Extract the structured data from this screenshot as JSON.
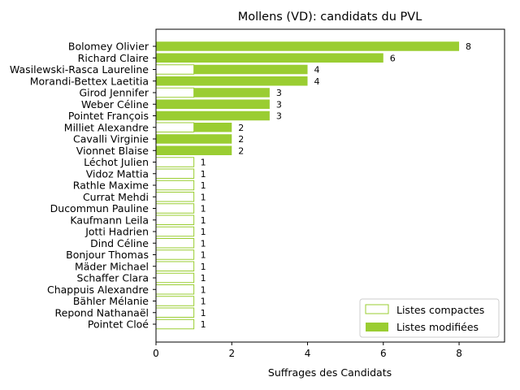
{
  "chart_data": {
    "type": "bar",
    "orientation": "horizontal",
    "title": "Mollens (VD): candidats du PVL",
    "xlabel": "Suffrages des Candidats",
    "ylabel": "",
    "xlim": [
      0,
      9.2
    ],
    "xticks": [
      0,
      2,
      4,
      6,
      8
    ],
    "grid": false,
    "legend_position": "bottom-right",
    "bar_color": "#9ACD32",
    "categories": [
      "Bolomey Olivier",
      "Richard Claire",
      "Wasilewski-Rasca Laureline",
      "Morandi-Bettex Laetitia",
      "Girod Jennifer",
      "Weber Céline",
      "Pointet François",
      "Milliet Alexandre",
      "Cavalli Virginie",
      "Vionnet Blaise",
      "Léchot Julien",
      "Vidoz Mattia",
      "Rathle Maxime",
      "Currat Mehdi",
      "Ducommun Pauline",
      "Kaufmann Leila",
      "Jotti Hadrien",
      "Dind Céline",
      "Bonjour Thomas",
      "Mäder Michael",
      "Schaffer Clara",
      "Chappuis Alexandre",
      "Bähler Mélanie",
      "Repond Nathanaël",
      "Pointet Cloé"
    ],
    "series": [
      {
        "name": "Listes compactes",
        "style": "outline",
        "values": [
          0,
          0,
          1,
          0,
          1,
          0,
          0,
          1,
          0,
          0,
          1,
          1,
          1,
          1,
          1,
          1,
          1,
          1,
          1,
          1,
          1,
          1,
          1,
          1,
          1
        ]
      },
      {
        "name": "Listes modifiées",
        "style": "filled",
        "values": [
          8,
          6,
          3,
          4,
          2,
          3,
          3,
          1,
          2,
          2,
          0,
          0,
          0,
          0,
          0,
          0,
          0,
          0,
          0,
          0,
          0,
          0,
          0,
          0,
          0
        ]
      }
    ],
    "totals": [
      8,
      6,
      4,
      4,
      3,
      3,
      3,
      2,
      2,
      2,
      1,
      1,
      1,
      1,
      1,
      1,
      1,
      1,
      1,
      1,
      1,
      1,
      1,
      1,
      1
    ]
  }
}
